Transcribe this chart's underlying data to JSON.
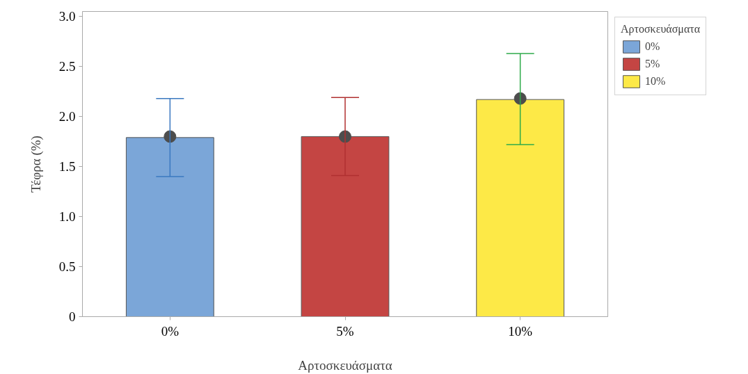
{
  "chart_data": {
    "type": "bar",
    "xlabel": "Αρτοσκευάσματα",
    "ylabel": "Τέφρα (%)",
    "legend_title": "Αρτοσκευάσματα",
    "categories": [
      "0%",
      "5%",
      "10%"
    ],
    "series": [
      {
        "name": "0%",
        "color": "#7ba6d8",
        "values": [
          1.79,
          null,
          null
        ]
      },
      {
        "name": "5%",
        "color": "#c44543",
        "values": [
          null,
          1.8,
          null
        ]
      },
      {
        "name": "10%",
        "color": "#fde947",
        "values": [
          null,
          null,
          2.17
        ]
      },
      {
        "type": "scatter",
        "x": [
          "0%",
          "5%",
          "10%"
        ],
        "values": [
          1.8,
          1.8,
          2.18
        ],
        "color": "#4d4d4d",
        "errors": [
          [
            1.4,
            2.18
          ],
          [
            1.41,
            2.19
          ],
          [
            1.72,
            2.63
          ]
        ]
      }
    ],
    "ylim": [
      0,
      3.05
    ],
    "yticks": [
      0,
      0.5,
      {
        "value": 1,
        "label": "1.0"
      },
      1.5,
      {
        "value": 2,
        "label": "2.0"
      },
      2.5,
      {
        "value": 3,
        "label": "3.0"
      }
    ],
    "grid": false,
    "legend": "top right",
    "marker": "circle"
  }
}
